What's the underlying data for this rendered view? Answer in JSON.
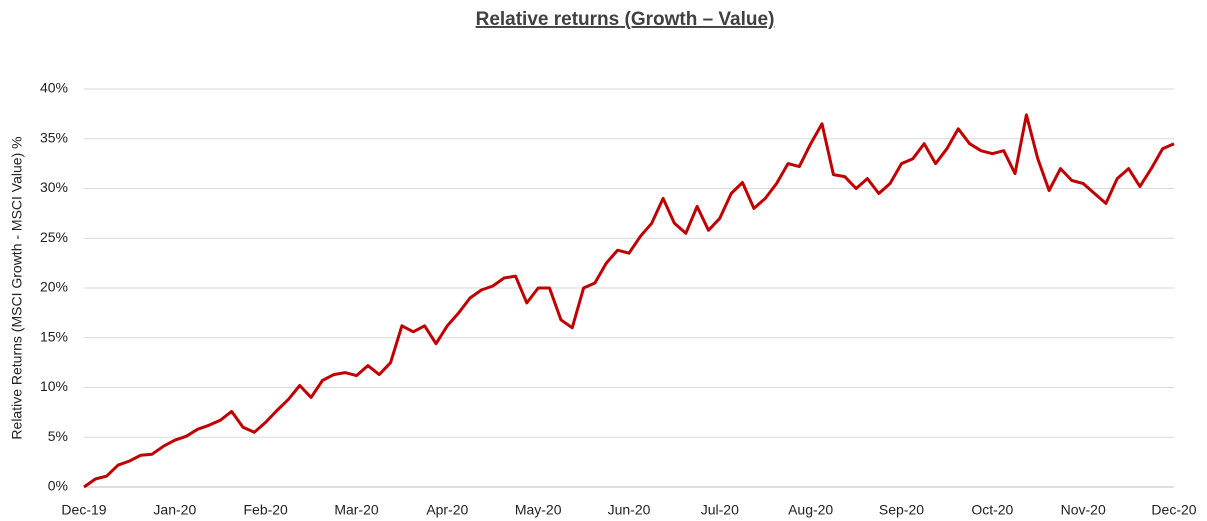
{
  "chart_data": {
    "type": "line",
    "title": "Relative returns (Growth – Value)",
    "y_label": "Relative Returns (MSCI Growth - MSCI Value) %",
    "categories": [
      "Dec-19",
      null,
      null,
      null,
      null,
      null,
      null,
      null,
      "Jan-20",
      null,
      null,
      null,
      null,
      null,
      null,
      null,
      "Feb-20",
      null,
      null,
      null,
      null,
      null,
      null,
      null,
      "Mar-20",
      null,
      null,
      null,
      null,
      null,
      null,
      null,
      "Apr-20",
      null,
      null,
      null,
      null,
      null,
      null,
      null,
      "May-20",
      null,
      null,
      null,
      null,
      null,
      null,
      null,
      "Jun-20",
      null,
      null,
      null,
      null,
      null,
      null,
      null,
      "Jul-20",
      null,
      null,
      null,
      null,
      null,
      null,
      null,
      "Aug-20",
      null,
      null,
      null,
      null,
      null,
      null,
      null,
      "Sep-20",
      null,
      null,
      null,
      null,
      null,
      null,
      null,
      "Oct-20",
      null,
      null,
      null,
      null,
      null,
      null,
      null,
      "Nov-20",
      null,
      null,
      null,
      null,
      null,
      null,
      null,
      "Dec-20"
    ],
    "series": [
      {
        "name": "Relative returns",
        "color": "#c00000",
        "values": [
          0,
          0.8,
          1.1,
          2.2,
          2.6,
          3.2,
          3.3,
          4.1,
          4.7,
          5.1,
          5.8,
          6.2,
          6.7,
          7.6,
          6.0,
          5.5,
          6.5,
          7.7,
          8.8,
          10.2,
          9.0,
          10.7,
          11.3,
          11.5,
          11.2,
          12.2,
          11.3,
          12.5,
          16.2,
          15.6,
          16.2,
          14.4,
          16.2,
          17.5,
          19.0,
          19.8,
          20.2,
          21.0,
          21.2,
          18.5,
          20.0,
          20.0,
          16.8,
          16.0,
          20.0,
          20.5,
          22.5,
          23.8,
          23.5,
          25.2,
          26.5,
          29.0,
          26.5,
          25.5,
          28.2,
          25.8,
          27.0,
          29.5,
          30.6,
          28.0,
          29.0,
          30.5,
          32.5,
          32.2,
          34.5,
          36.5,
          31.4,
          31.2,
          30.0,
          31.0,
          29.5,
          30.5,
          32.5,
          33.0,
          34.5,
          32.5,
          34.0,
          36.0,
          34.5,
          33.8,
          33.5,
          33.8,
          31.5,
          37.4,
          33.0,
          29.8,
          32.0,
          30.8,
          30.5,
          29.5,
          28.5,
          31.0,
          32.0,
          30.2,
          32.0,
          34.0,
          34.5
        ]
      }
    ],
    "ylim": [
      0,
      40
    ],
    "yticks": [
      {
        "value": 0,
        "label": "0%"
      },
      {
        "value": 5,
        "label": "5%"
      },
      {
        "value": 10,
        "label": "10%"
      },
      {
        "value": 15,
        "label": "15%"
      },
      {
        "value": 20,
        "label": "20%"
      },
      {
        "value": 25,
        "label": "25%"
      },
      {
        "value": 30,
        "label": "30%"
      },
      {
        "value": 35,
        "label": "35%"
      },
      {
        "value": 40,
        "label": "40%"
      }
    ],
    "grid": true
  }
}
